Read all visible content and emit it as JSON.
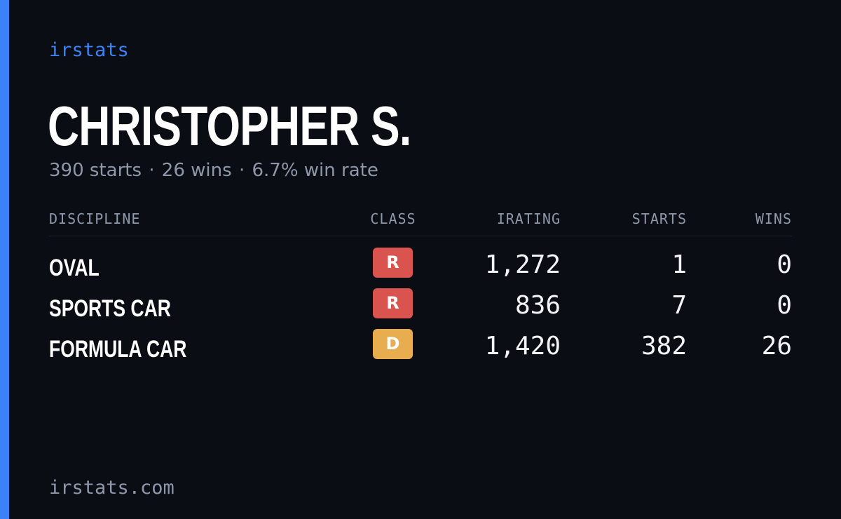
{
  "brand": "irstats",
  "driver": {
    "name": "CHRISTOPHER S.",
    "starts_text": "390 starts",
    "wins_text": "26 wins",
    "winrate_text": "6.7% win rate",
    "separator": "·"
  },
  "table": {
    "headers": {
      "discipline": "DISCIPLINE",
      "class": "CLASS",
      "irating": "IRATING",
      "starts": "STARTS",
      "wins": "WINS"
    },
    "rows": [
      {
        "discipline": "OVAL",
        "class": "R",
        "class_color": "#d9534f",
        "irating": "1,272",
        "starts": "1",
        "wins": "0"
      },
      {
        "discipline": "SPORTS CAR",
        "class": "R",
        "class_color": "#d9534f",
        "irating": "836",
        "starts": "7",
        "wins": "0"
      },
      {
        "discipline": "FORMULA CAR",
        "class": "D",
        "class_color": "#e8ad4f",
        "irating": "1,420",
        "starts": "382",
        "wins": "26"
      }
    ]
  },
  "footer": "irstats.com",
  "colors": {
    "accent": "#3b82f6",
    "background": "#0a0d14",
    "muted": "#8f98aa"
  }
}
